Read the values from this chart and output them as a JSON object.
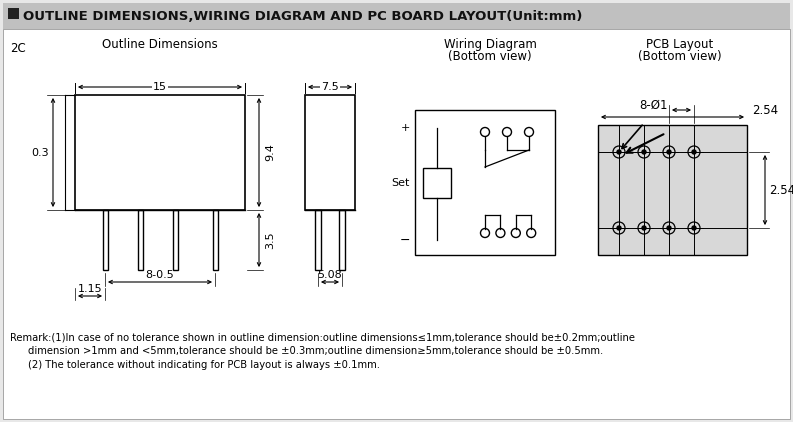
{
  "title": "OUTLINE DIMENSIONS,WIRING DIAGRAM AND PC BOARD LAYOUT(Unit:mm)",
  "title_bg": "#c0c0c0",
  "title_square_color": "#222222",
  "bg_color": "#e8e8e8",
  "content_bg": "#ffffff",
  "section_label": "2C",
  "col1_title": "Outline Dimensions",
  "col2_title": "Wiring Diagram",
  "col2_subtitle": "(Bottom view)",
  "col3_title": "PCB Layout",
  "col3_subtitle": "(Bottom view)",
  "remark1": "Remark:(1)In case of no tolerance shown in outline dimension:outline dimensions≤1mm,tolerance should be±0.2mm;outline",
  "remark2": "dimension >1mm and <5mm,tolerance should be ±0.3mm;outline dimension≥5mm,tolerance should be ±0.5mm.",
  "remark3": "(2) The tolerance without indicating for PCB layout is always ±0.1mm."
}
